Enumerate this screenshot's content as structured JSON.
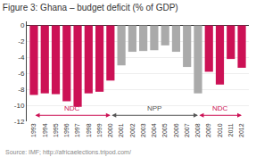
{
  "chart_data": {
    "type": "bar",
    "title": "Figure 3: Ghana – budget deficit (% of GDP)",
    "categories": [
      "1993",
      "1994",
      "1995",
      "1996",
      "1997",
      "1998",
      "1999",
      "2000",
      "2001",
      "2002",
      "2003",
      "2004",
      "2005",
      "2006",
      "2007",
      "2008",
      "2009",
      "2010",
      "2011",
      "2012"
    ],
    "values": [
      -8.7,
      -8.5,
      -8.6,
      -9.5,
      -10.2,
      -8.5,
      -8.3,
      -6.9,
      -5.0,
      -3.3,
      -3.2,
      -3.1,
      -2.5,
      -3.3,
      -5.2,
      -8.5,
      -5.8,
      -7.4,
      -4.2,
      -5.3
    ],
    "colors": [
      "#cc1155",
      "#cc1155",
      "#cc1155",
      "#cc1155",
      "#cc1155",
      "#cc1155",
      "#cc1155",
      "#cc1155",
      "#aaaaaa",
      "#aaaaaa",
      "#aaaaaa",
      "#aaaaaa",
      "#aaaaaa",
      "#aaaaaa",
      "#aaaaaa",
      "#aaaaaa",
      "#cc1155",
      "#cc1155",
      "#cc1155",
      "#cc1155"
    ],
    "ylim": [
      -12,
      0.5
    ],
    "yticks": [
      0,
      -2,
      -4,
      -6,
      -8,
      -10,
      -12
    ],
    "grid": true,
    "source": "Source: IMF; http://africaelections.tripod.com/",
    "annotations": [
      {
        "text": "NDC",
        "x_start": "1993",
        "x_end": "2000",
        "color": "#cc1155"
      },
      {
        "text": "NPP",
        "x_start": "2000",
        "x_end": "2008",
        "color": "#555555"
      },
      {
        "text": "NDC",
        "x_start": "2008",
        "x_end": "2012",
        "color": "#cc1155"
      }
    ]
  }
}
